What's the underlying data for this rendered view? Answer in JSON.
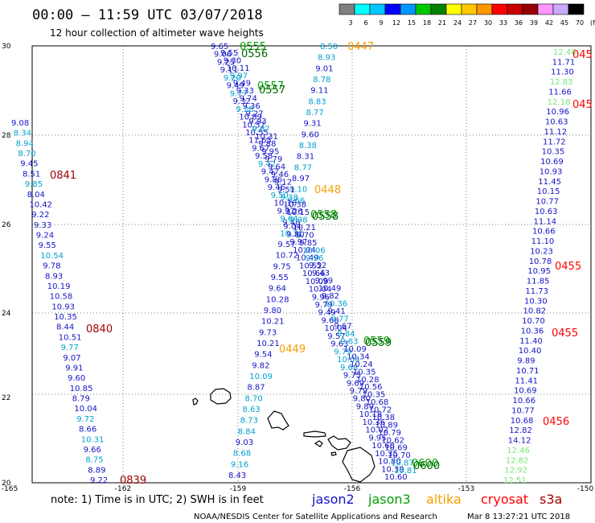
{
  "header": {
    "title": "00:00 – 11:59 UTC 03/07/2018",
    "subtitle": "12 hour collection of altimeter wave heights"
  },
  "scale": {
    "labels": [
      "3",
      "6",
      "9",
      "12",
      "15",
      "18",
      "21",
      "24",
      "27",
      "30",
      "33",
      "36",
      "39",
      "42",
      "45",
      "70",
      "(ft)"
    ],
    "colors": [
      "#808080",
      "#00ffff",
      "#00c8ff",
      "#0000ff",
      "#0096ff",
      "#00c800",
      "#008200",
      "#ffff00",
      "#ffc800",
      "#ff9600",
      "#ff0000",
      "#c80000",
      "#960000",
      "#ff96ff",
      "#c8aaff",
      "#000000"
    ]
  },
  "axes": {
    "lon_labels": [
      "-165",
      "-162",
      "-159",
      "-156",
      "-153",
      "-150"
    ],
    "lat_labels": [
      "30",
      "28",
      "26",
      "24",
      "22",
      "20"
    ]
  },
  "footer": {
    "note": "note:  1) Time is in UTC;  2) SWH is in feet",
    "credit": "NOAA/NESDIS Center for Satellite Applications and Research",
    "timestamp": "Mar  8 13:27:21 UTC 2018"
  },
  "legend": [
    {
      "name": "jason2",
      "color": "#1414c8"
    },
    {
      "name": "jason3",
      "color": "#00a000"
    },
    {
      "name": "altika",
      "color": "#f5a000"
    },
    {
      "name": "cryosat",
      "color": "#ff0000"
    },
    {
      "name": "s3a",
      "color": "#a00000"
    }
  ],
  "time_labels": [
    {
      "text": "0555",
      "color": "#00a000"
    },
    {
      "text": "0556",
      "color": "#006400"
    },
    {
      "text": "0557",
      "color": "#00a000"
    },
    {
      "text": "0557",
      "color": "#006400"
    },
    {
      "text": "0447",
      "color": "#f5a000"
    },
    {
      "text": "045",
      "color": "#ff0000"
    },
    {
      "text": "045",
      "color": "#ff0000"
    },
    {
      "text": "0841",
      "color": "#a00000"
    },
    {
      "text": "0448",
      "color": "#f5a000"
    },
    {
      "text": "0558",
      "color": "#00a000"
    },
    {
      "text": "0558",
      "color": "#006400"
    },
    {
      "text": "0455",
      "color": "#ff0000"
    },
    {
      "text": "0840",
      "color": "#a00000"
    },
    {
      "text": "0455",
      "color": "#ff0000"
    },
    {
      "text": "0449",
      "color": "#f5a000"
    },
    {
      "text": "0559",
      "color": "#00a000"
    },
    {
      "text": "0559",
      "color": "#006400"
    },
    {
      "text": "0456",
      "color": "#ff0000"
    },
    {
      "text": "0600",
      "color": "#00a000"
    },
    {
      "text": "0600",
      "color": "#006400"
    },
    {
      "text": "0839",
      "color": "#a00000"
    }
  ],
  "tracks": [
    {
      "name": "s3a-west",
      "colors": [
        "#1414c8",
        "#00a0d0",
        "#00a0d0",
        "#00a0d0",
        "#1414c8",
        "#1414c8",
        "#00a0d0",
        "#1414c8",
        "#1414c8",
        "#1414c8",
        "#1414c8",
        "#1414c8",
        "#1414c8",
        "#00a0d0",
        "#1414c8",
        "#1414c8",
        "#1414c8",
        "#1414c8",
        "#1414c8",
        "#1414c8",
        "#1414c8",
        "#1414c8",
        "#00a0d0",
        "#1414c8",
        "#1414c8",
        "#1414c8",
        "#1414c8",
        "#1414c8",
        "#1414c8",
        "#00a0d0",
        "#1414c8",
        "#00a0d0",
        "#1414c8",
        "#00a0d0",
        "#1414c8",
        "#1414c8",
        "#00a0d0",
        "#00a0d0",
        "#00a0d0"
      ],
      "values": [
        "9.08",
        "8.34",
        "8.94",
        "8.70",
        "9.45",
        "8.51",
        "9.85",
        "8.04",
        "10.42",
        "9.22",
        "9.33",
        "9.24",
        "9.55",
        "10.54",
        "9.78",
        "8.93",
        "10.19",
        "10.58",
        "10.93",
        "10.35",
        "8.44",
        "10.51",
        "9.77",
        "9.07",
        "9.91",
        "9.60",
        "10.85",
        "8.79",
        "10.04",
        "9.72",
        "8.66",
        "10.31",
        "9.66",
        "8.75",
        "8.89",
        "9.22",
        "",
        "",
        ""
      ]
    },
    {
      "name": "altika",
      "colors": [
        "#00a0d0",
        "#00a0d0",
        "#1414c8",
        "#00a0d0",
        "#1414c8",
        "#00a0d0",
        "#00a0d0",
        "#1414c8",
        "#1414c8",
        "#00a0d0",
        "#1414c8",
        "#00a0d0",
        "#1414c8",
        "#00a0d0",
        "#00a0d0",
        "#1414c8",
        "#1414c8",
        "#00a0d0",
        "#1414c8",
        "#1414c8",
        "#1414c8",
        "#1414c8",
        "#1414c8",
        "#1414c8",
        "#1414c8",
        "#1414c8",
        "#1414c8",
        "#1414c8",
        "#1414c8",
        "#1414c8",
        "#00a0d0",
        "#1414c8",
        "#00a0d0",
        "#00a0d0",
        "#00a0d0",
        "#00a0d0",
        "#1414c8",
        "#00a0d0",
        "#00a0d0",
        "#1414c8",
        "#00a0d0"
      ],
      "values": [
        "8.50",
        "8.93",
        "9.01",
        "8.78",
        "9.11",
        "8.83",
        "8.77",
        "9.31",
        "9.60",
        "8.38",
        "8.31",
        "8.77",
        "8.97",
        "9.10",
        "9.66",
        "9.26",
        "9.48",
        "10.31",
        "9.57",
        "10.72",
        "9.75",
        "9.55",
        "9.64",
        "10.28",
        "9.80",
        "10.21",
        "9.73",
        "10.21",
        "9.54",
        "9.82",
        "10.09",
        "8.87",
        "8.70",
        "8.63",
        "8.73",
        "8.84",
        "9.03",
        "8.68",
        "9.16",
        "8.43",
        ""
      ]
    },
    {
      "name": "cryosat",
      "colors": [
        "#78e678",
        "#1414c8",
        "#1414c8",
        "#78e678",
        "#1414c8",
        "#78e678",
        "#1414c8",
        "#1414c8",
        "#1414c8",
        "#1414c8",
        "#1414c8",
        "#1414c8",
        "#1414c8",
        "#1414c8",
        "#1414c8",
        "#1414c8",
        "#1414c8",
        "#1414c8",
        "#1414c8",
        "#1414c8",
        "#1414c8",
        "#1414c8",
        "#1414c8",
        "#1414c8",
        "#1414c8",
        "#1414c8",
        "#1414c8",
        "#1414c8",
        "#1414c8",
        "#1414c8",
        "#1414c8",
        "#1414c8",
        "#1414c8",
        "#1414c8",
        "#1414c8",
        "#1414c8",
        "#1414c8",
        "#1414c8",
        "#1414c8",
        "#1414c8",
        "#78e678",
        "#78e678",
        "#78e678",
        "#78e678",
        "#78e678",
        "#78e678"
      ],
      "values": [
        "12.48",
        "11.71",
        "11.30",
        "12.83",
        "11.66",
        "12.18",
        "10.96",
        "10.63",
        "11.12",
        "11.72",
        "10.35",
        "10.69",
        "10.93",
        "11.45",
        "10.15",
        "10.77",
        "10.63",
        "11.14",
        "10.66",
        "11.10",
        "10.23",
        "10.78",
        "10.95",
        "11.85",
        "11.73",
        "10.30",
        "10.82",
        "10.70",
        "10.36",
        "11.40",
        "10.40",
        "9.89",
        "10.71",
        "11.41",
        "10.69",
        "10.66",
        "10.77",
        "10.68",
        "12.82",
        "14.12",
        "12.46",
        "12.82",
        "12.92",
        "12.51",
        "",
        ""
      ]
    },
    {
      "name": "jason-west",
      "colors": [
        "#1414c8",
        "#1414c8",
        "#1414c8",
        "#1414c8",
        "#00a0d0",
        "#1414c8",
        "#00a0d0",
        "#1414c8",
        "#00a0d0",
        "#1414c8",
        "#1414c8",
        "#1414c8",
        "#1414c8",
        "#1414c8",
        "#1414c8",
        "#00a0d0",
        "#1414c8",
        "#1414c8",
        "#1414c8",
        "#00a0d0",
        "#1414c8",
        "#1414c8",
        "#00a0d0",
        "#1414c8",
        "#1414c8",
        "#1414c8",
        "#1414c8",
        "#1414c8",
        "#1414c8",
        "#1414c8",
        "#1414c8",
        "#1414c8",
        "#1414c8",
        "#1414c8",
        "#1414c8",
        "#1414c8",
        "#1414c8",
        "#1414c8",
        "#1414c8",
        "#00a0d0",
        "#00a0d0",
        "#00a0d0",
        "#1414c8",
        "#1414c8",
        "#1414c8",
        "#1414c8",
        "#1414c8",
        "#1414c8",
        "#1414c8",
        "#1414c8",
        "#1414c8",
        "#1414c8",
        "#1414c8",
        "#1414c8",
        "#1414c8",
        "#1414c8"
      ],
      "values": [
        "9.65",
        "9.06",
        "9.25",
        "9.11",
        "9.20",
        "9.49",
        "9.77",
        "9.32",
        "9.28",
        "10.89",
        "10.52",
        "10.55",
        "11.65",
        "9.67",
        "9.58",
        "9.42",
        "9.47",
        "9.86",
        "9.46",
        "9.50",
        "10.16",
        "9.77",
        "9.64",
        "9.04",
        "9.80",
        "9.97",
        "10.04",
        "10.49",
        "10.52",
        "10.66",
        "10.09",
        "10.04",
        "9.96",
        "9.79",
        "9.49",
        "9.68",
        "10.04",
        "9.57",
        "9.63",
        "9.79",
        "10.04",
        "9.68",
        "9.75",
        "9.69",
        "9.79",
        "9.80",
        "9.89",
        "10.18",
        "10.36",
        "10.02",
        "9.95",
        "10.68",
        "10.35",
        "10.80",
        "10.39",
        "10.60"
      ]
    },
    {
      "name": "jason-east",
      "colors": [
        "#1414c8",
        "#1414c8",
        "#1414c8",
        "#00a0d0",
        "#1414c8",
        "#1414c8",
        "#1414c8",
        "#1414c8",
        "#1414c8",
        "#1414c8",
        "#00a0d0",
        "#1414c8",
        "#1414c8",
        "#1414c8",
        "#1414c8",
        "#1414c8",
        "#1414c8",
        "#1414c8",
        "#1414c8",
        "#00a0d0",
        "#1414c8",
        "#1414c8",
        "#00a0d0",
        "#1414c8",
        "#1414c8",
        "#1414c8",
        "#00a0d0",
        "#00a0d0",
        "#1414c8",
        "#1414c8",
        "#1414c8",
        "#1414c8",
        "#1414c8",
        "#00a0d0",
        "#1414c8",
        "#00a0d0",
        "#1414c8",
        "#00a0d0",
        "#00a0d0",
        "#1414c8",
        "#1414c8",
        "#1414c8",
        "#1414c8",
        "#1414c8",
        "#1414c8",
        "#1414c8",
        "#1414c8",
        "#1414c8",
        "#1414c8",
        "#1414c8",
        "#1414c8",
        "#1414c8",
        "#1414c8",
        "#1414c8",
        "#00a0d0",
        "#00a0d0"
      ],
      "values": [
        "9.55",
        "9.30",
        "10.11",
        "9.97",
        "9.49",
        "9.33",
        "9.74",
        "9.36",
        "9.27",
        "9.93",
        "9.67",
        "10.31",
        "9.88",
        "9.95",
        "9.79",
        "9.64",
        "9.46",
        "9.12",
        "9.51",
        "9.38",
        "10.38",
        "10.15",
        "9.98",
        "10.21",
        "9.70",
        "9.85",
        "10.06",
        "9.96",
        "9.52",
        "9.43",
        "9.99",
        "10.49",
        "9.82",
        "10.36",
        "9.41",
        "9.77",
        "9.67",
        "9.84",
        "9.63",
        "10.09",
        "10.34",
        "10.24",
        "10.35",
        "10.28",
        "10.56",
        "10.35",
        "10.68",
        "10.72",
        "10.38",
        "10.89",
        "10.79",
        "10.62",
        "10.69",
        "10.70",
        "10.87",
        "10.81"
      ]
    }
  ]
}
